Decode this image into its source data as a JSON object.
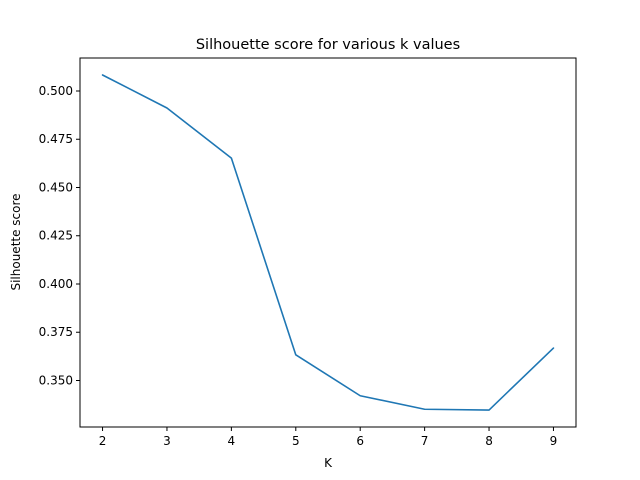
{
  "chart_data": {
    "type": "line",
    "title": "Silhouette score for various k values",
    "xlabel": "K",
    "ylabel": "Silhouette score",
    "x": [
      2,
      3,
      4,
      5,
      6,
      7,
      8,
      9
    ],
    "series": [
      {
        "values": [
          0.5083,
          0.4912,
          0.4652,
          0.3633,
          0.3421,
          0.3351,
          0.3347,
          0.3668
        ],
        "color": "#1f77b4"
      }
    ],
    "xticks": [
      "2",
      "3",
      "4",
      "5",
      "6",
      "7",
      "8",
      "9"
    ],
    "yticks": [
      "0.350",
      "0.375",
      "0.400",
      "0.425",
      "0.450",
      "0.475",
      "0.500"
    ],
    "xlim": [
      1.65,
      9.35
    ],
    "ylim": [
      0.3259,
      0.5171
    ],
    "grid": false,
    "legend": "none"
  }
}
